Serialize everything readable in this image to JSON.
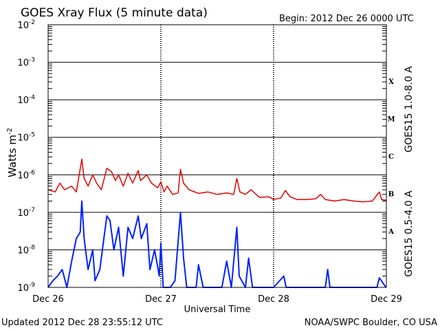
{
  "header": {
    "title": "GOES Xray Flux (5 minute data)",
    "begin": "Begin:  2012 Dec 26 0000 UTC"
  },
  "footer": {
    "updated": "Updated 2012 Dec 28 23:55:12 UTC",
    "credit": "NOAA/SWPC Boulder, CO USA"
  },
  "chart_data": {
    "type": "line",
    "title": "GOES Xray Flux (5 minute data)",
    "xlabel": "Universal Time",
    "ylabel": "Watts m",
    "ylabel_sup": "-2",
    "y_scale": "log",
    "ylim": [
      1e-09,
      0.01
    ],
    "xlim": [
      "2012-12-26 00:00",
      "2012-12-29 00:00"
    ],
    "x_ticks": [
      "Dec 26",
      "Dec 27",
      "Dec 28",
      "Dec 29"
    ],
    "y_ticks": [
      {
        "base": "10",
        "exp": "-9"
      },
      {
        "base": "10",
        "exp": "-8"
      },
      {
        "base": "10",
        "exp": "-7"
      },
      {
        "base": "10",
        "exp": "-6"
      },
      {
        "base": "10",
        "exp": "-5"
      },
      {
        "base": "10",
        "exp": "-4"
      },
      {
        "base": "10",
        "exp": "-3"
      },
      {
        "base": "10",
        "exp": "-2"
      }
    ],
    "flare_classes": [
      {
        "label": "X",
        "exp": -3.5
      },
      {
        "label": "M",
        "exp": -4.5
      },
      {
        "label": "C",
        "exp": -5.5
      },
      {
        "label": "B",
        "exp": -6.5
      },
      {
        "label": "A",
        "exp": -7.5
      }
    ],
    "grid": true,
    "series": [
      {
        "name": "GOES15 1.0-8.0 A",
        "color": "#e00000",
        "points": [
          [
            "2012-12-26 00:00",
            4e-07
          ],
          [
            "2012-12-26 01:30",
            3.5e-07
          ],
          [
            "2012-12-26 02:30",
            6e-07
          ],
          [
            "2012-12-26 03:30",
            4e-07
          ],
          [
            "2012-12-26 05:00",
            5e-07
          ],
          [
            "2012-12-26 06:00",
            3.5e-07
          ],
          [
            "2012-12-26 07:10",
            2.6e-06
          ],
          [
            "2012-12-26 07:40",
            8e-07
          ],
          [
            "2012-12-26 08:30",
            5e-07
          ],
          [
            "2012-12-26 09:30",
            1e-06
          ],
          [
            "2012-12-26 10:20",
            6e-07
          ],
          [
            "2012-12-26 11:20",
            4e-07
          ],
          [
            "2012-12-26 12:30",
            1.5e-06
          ],
          [
            "2012-12-26 13:30",
            1.2e-06
          ],
          [
            "2012-12-26 14:20",
            7e-07
          ],
          [
            "2012-12-26 15:00",
            1e-06
          ],
          [
            "2012-12-26 16:00",
            5e-07
          ],
          [
            "2012-12-26 17:00",
            1.1e-06
          ],
          [
            "2012-12-26 18:00",
            6e-07
          ],
          [
            "2012-12-26 19:10",
            1.3e-06
          ],
          [
            "2012-12-26 19:40",
            7e-07
          ],
          [
            "2012-12-26 21:00",
            1e-06
          ],
          [
            "2012-12-26 22:00",
            6e-07
          ],
          [
            "2012-12-26 23:20",
            4.5e-07
          ],
          [
            "2012-12-27 00:00",
            6.5e-07
          ],
          [
            "2012-12-27 00:40",
            3.5e-07
          ],
          [
            "2012-12-27 01:20",
            5e-07
          ],
          [
            "2012-12-27 02:30",
            3e-07
          ],
          [
            "2012-12-27 03:40",
            3.3e-07
          ],
          [
            "2012-12-27 04:10",
            1.4e-06
          ],
          [
            "2012-12-27 04:50",
            6e-07
          ],
          [
            "2012-12-27 06:00",
            4e-07
          ],
          [
            "2012-12-27 08:00",
            3.2e-07
          ],
          [
            "2012-12-27 10:00",
            3.5e-07
          ],
          [
            "2012-12-27 12:00",
            3e-07
          ],
          [
            "2012-12-27 14:00",
            3.3e-07
          ],
          [
            "2012-12-27 15:30",
            3e-07
          ],
          [
            "2012-12-27 16:10",
            8e-07
          ],
          [
            "2012-12-27 16:50",
            3.5e-07
          ],
          [
            "2012-12-27 18:00",
            3e-07
          ],
          [
            "2012-12-27 19:10",
            4e-07
          ],
          [
            "2012-12-27 21:00",
            2.5e-07
          ],
          [
            "2012-12-27 23:00",
            2.6e-07
          ],
          [
            "2012-12-28 00:00",
            2.2e-07
          ],
          [
            "2012-12-28 01:30",
            2.4e-07
          ],
          [
            "2012-12-28 02:30",
            3.8e-07
          ],
          [
            "2012-12-28 03:30",
            2.6e-07
          ],
          [
            "2012-12-28 05:00",
            2.2e-07
          ],
          [
            "2012-12-28 07:00",
            2.2e-07
          ],
          [
            "2012-12-28 09:00",
            2.3e-07
          ],
          [
            "2012-12-28 10:00",
            3e-07
          ],
          [
            "2012-12-28 11:00",
            2.2e-07
          ],
          [
            "2012-12-28 13:00",
            2e-07
          ],
          [
            "2012-12-28 15:00",
            2.2e-07
          ],
          [
            "2012-12-28 17:00",
            2e-07
          ],
          [
            "2012-12-28 19:00",
            1.9e-07
          ],
          [
            "2012-12-28 21:00",
            2e-07
          ],
          [
            "2012-12-28 22:30",
            3.5e-07
          ],
          [
            "2012-12-28 23:00",
            2.2e-07
          ],
          [
            "2012-12-28 23:55",
            2.1e-07
          ]
        ]
      },
      {
        "name": "GOES15 0.5-4.0 A",
        "color": "#0020ff",
        "points": [
          [
            "2012-12-26 00:00",
            1e-09
          ],
          [
            "2012-12-26 01:00",
            1.5e-09
          ],
          [
            "2012-12-26 02:00",
            2e-09
          ],
          [
            "2012-12-26 03:00",
            3e-09
          ],
          [
            "2012-12-26 04:00",
            1e-09
          ],
          [
            "2012-12-26 05:00",
            5e-09
          ],
          [
            "2012-12-26 06:00",
            2e-08
          ],
          [
            "2012-12-26 06:50",
            3e-08
          ],
          [
            "2012-12-26 07:10",
            2e-07
          ],
          [
            "2012-12-26 07:40",
            2e-08
          ],
          [
            "2012-12-26 08:30",
            3e-09
          ],
          [
            "2012-12-26 09:30",
            1e-08
          ],
          [
            "2012-12-26 10:00",
            1.5e-09
          ],
          [
            "2012-12-26 11:00",
            3e-09
          ],
          [
            "2012-12-26 12:30",
            8e-08
          ],
          [
            "2012-12-26 13:10",
            6e-08
          ],
          [
            "2012-12-26 14:00",
            1e-08
          ],
          [
            "2012-12-26 15:00",
            4e-08
          ],
          [
            "2012-12-26 16:00",
            2e-09
          ],
          [
            "2012-12-26 17:00",
            4e-08
          ],
          [
            "2012-12-26 18:00",
            2e-08
          ],
          [
            "2012-12-26 19:10",
            8e-08
          ],
          [
            "2012-12-26 19:50",
            2e-08
          ],
          [
            "2012-12-26 21:00",
            5e-08
          ],
          [
            "2012-12-26 21:40",
            3e-09
          ],
          [
            "2012-12-26 22:40",
            1e-08
          ],
          [
            "2012-12-26 23:40",
            2e-09
          ],
          [
            "2012-12-27 00:00",
            1.5e-08
          ],
          [
            "2012-12-27 00:30",
            1e-09
          ],
          [
            "2012-12-27 02:00",
            1e-09
          ],
          [
            "2012-12-27 03:00",
            1.5e-09
          ],
          [
            "2012-12-27 04:10",
            1e-07
          ],
          [
            "2012-12-27 04:50",
            6e-09
          ],
          [
            "2012-12-27 05:30",
            1e-09
          ],
          [
            "2012-12-27 07:30",
            1e-09
          ],
          [
            "2012-12-27 08:00",
            4e-09
          ],
          [
            "2012-12-27 09:00",
            1e-09
          ],
          [
            "2012-12-27 13:00",
            1e-09
          ],
          [
            "2012-12-27 14:00",
            5e-09
          ],
          [
            "2012-12-27 15:00",
            1e-09
          ],
          [
            "2012-12-27 16:10",
            4e-08
          ],
          [
            "2012-12-27 16:40",
            2e-09
          ],
          [
            "2012-12-27 18:00",
            1e-09
          ],
          [
            "2012-12-27 18:40",
            6e-09
          ],
          [
            "2012-12-27 19:30",
            1e-09
          ],
          [
            "2012-12-27 23:00",
            1e-09
          ],
          [
            "2012-12-28 00:00",
            1e-09
          ],
          [
            "2012-12-28 02:10",
            2e-09
          ],
          [
            "2012-12-28 02:40",
            1e-09
          ],
          [
            "2012-12-28 11:00",
            1e-09
          ],
          [
            "2012-12-28 11:30",
            3e-09
          ],
          [
            "2012-12-28 12:00",
            1e-09
          ],
          [
            "2012-12-28 22:00",
            1e-09
          ],
          [
            "2012-12-28 22:30",
            1.8e-09
          ],
          [
            "2012-12-28 23:55",
            1e-09
          ]
        ]
      }
    ]
  }
}
